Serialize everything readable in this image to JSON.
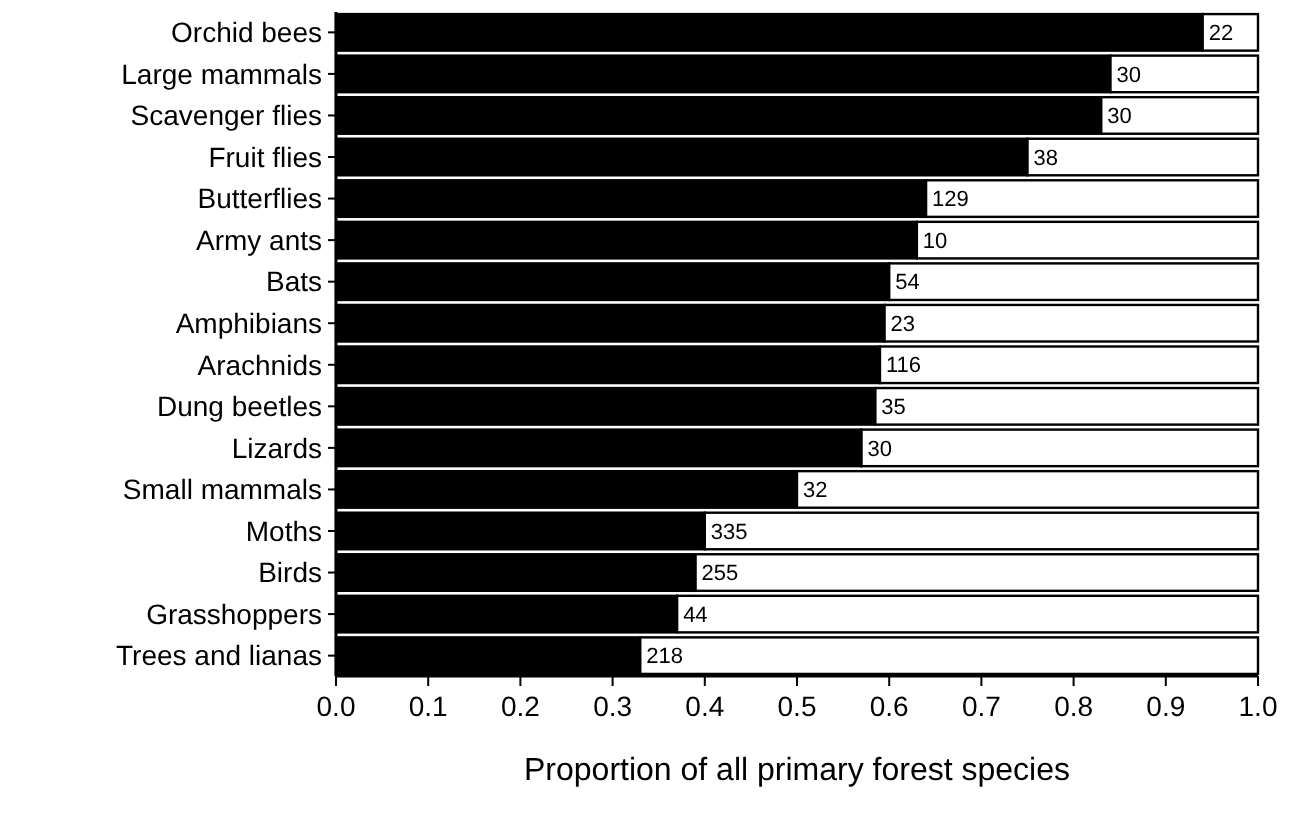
{
  "chart_data": {
    "type": "bar",
    "orientation": "horizontal",
    "stacked": true,
    "xlabel": "Proportion of all primary forest species",
    "categories": [
      "Orchid bees",
      "Large mammals",
      "Scavenger flies",
      "Fruit flies",
      "Butterflies",
      "Army ants",
      "Bats",
      "Amphibians",
      "Arachnids",
      "Dung beetles",
      "Lizards",
      "Small mammals",
      "Moths",
      "Birds",
      "Grasshoppers",
      "Trees and lianas"
    ],
    "series": [
      {
        "color": "#000000",
        "values": [
          0.94,
          0.84,
          0.83,
          0.75,
          0.64,
          0.63,
          0.6,
          0.595,
          0.59,
          0.585,
          0.57,
          0.5,
          0.4,
          0.39,
          0.37,
          0.33
        ]
      },
      {
        "color": "#ffffff",
        "values": [
          0.06,
          0.16,
          0.17,
          0.25,
          0.36,
          0.37,
          0.4,
          0.405,
          0.41,
          0.415,
          0.43,
          0.5,
          0.6,
          0.61,
          0.63,
          0.67
        ]
      }
    ],
    "annotations": [
      {
        "text": "22",
        "x": 0.94,
        "y": "Orchid bees"
      },
      {
        "text": "30",
        "x": 0.84,
        "y": "Large mammals"
      },
      {
        "text": "30",
        "x": 0.83,
        "y": "Scavenger flies"
      },
      {
        "text": "38",
        "x": 0.75,
        "y": "Fruit flies"
      },
      {
        "text": "129",
        "x": 0.64,
        "y": "Butterflies"
      },
      {
        "text": "10",
        "x": 0.63,
        "y": "Army ants"
      },
      {
        "text": "54",
        "x": 0.6,
        "y": "Bats"
      },
      {
        "text": "23",
        "x": 0.595,
        "y": "Amphibians"
      },
      {
        "text": "116",
        "x": 0.59,
        "y": "Arachnids"
      },
      {
        "text": "35",
        "x": 0.585,
        "y": "Dung beetles"
      },
      {
        "text": "30",
        "x": 0.57,
        "y": "Lizards"
      },
      {
        "text": "32",
        "x": 0.5,
        "y": "Small mammals"
      },
      {
        "text": "335",
        "x": 0.4,
        "y": "Moths"
      },
      {
        "text": "255",
        "x": 0.39,
        "y": "Birds"
      },
      {
        "text": "44",
        "x": 0.37,
        "y": "Grasshoppers"
      },
      {
        "text": "218",
        "x": 0.33,
        "y": "Trees and lianas"
      }
    ],
    "xlim": [
      0,
      1
    ],
    "xticks": [
      {
        "value": 0,
        "label": "0.0"
      },
      0.1,
      0.2,
      0.3,
      0.4,
      0.5,
      0.6,
      0.7,
      0.8,
      0.9,
      {
        "value": 1,
        "label": "1.0"
      }
    ],
    "grid": false
  }
}
